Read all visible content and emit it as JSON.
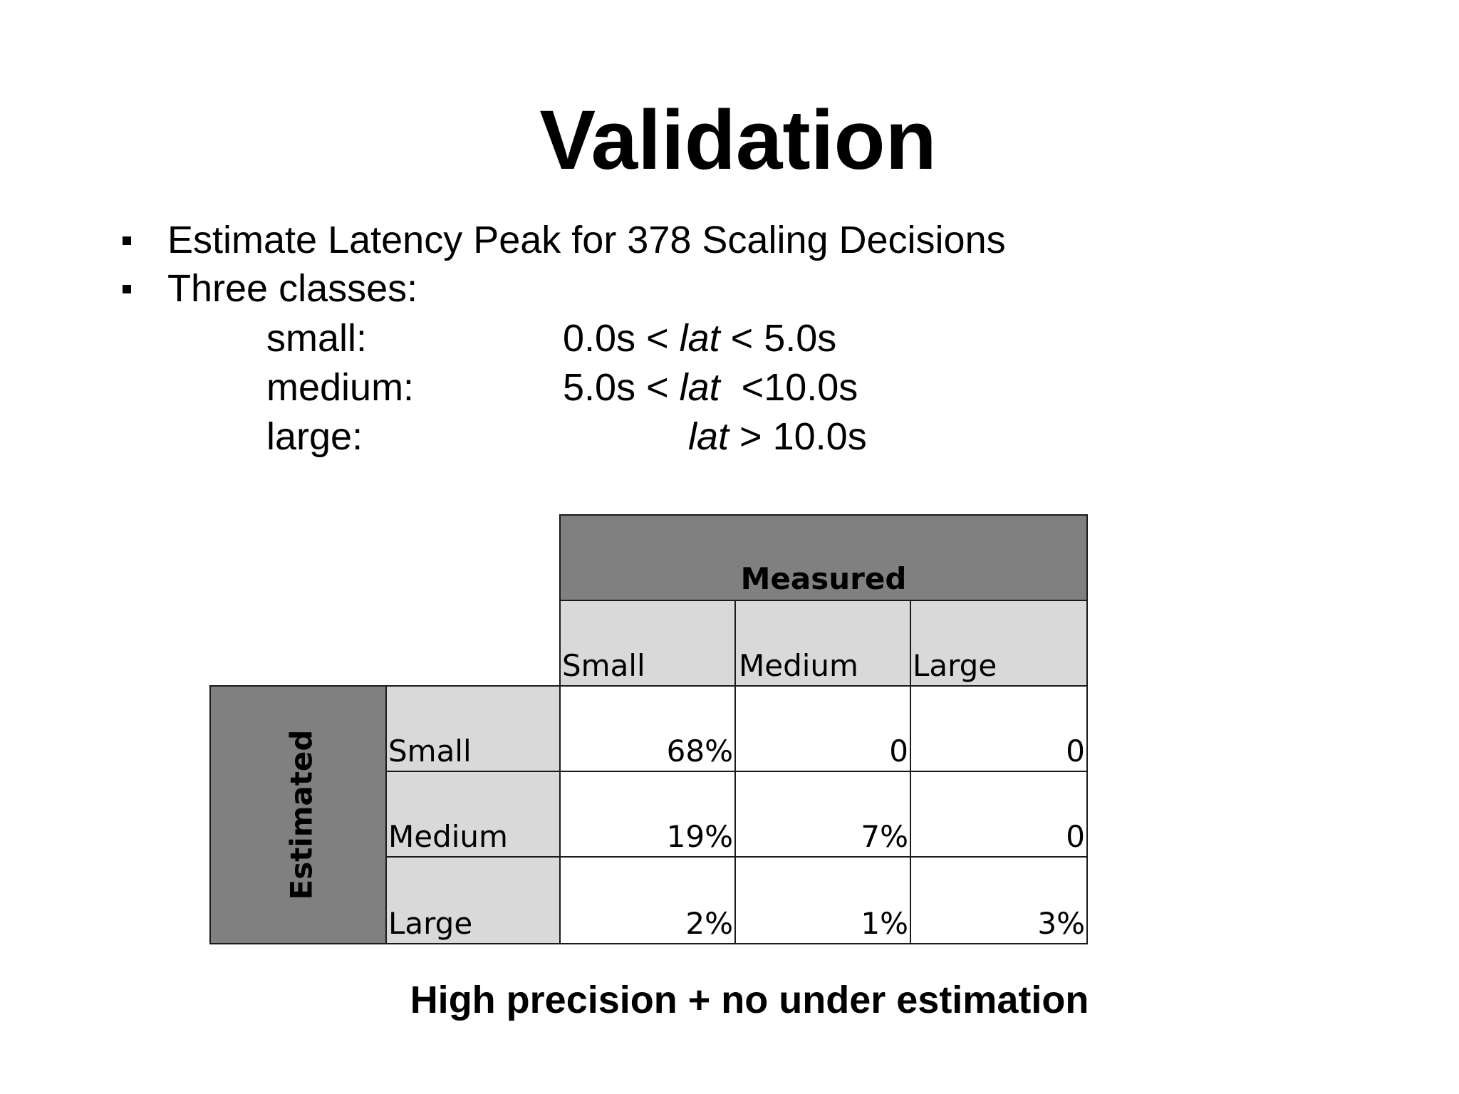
{
  "title": "Validation",
  "bullets": [
    "Estimate Latency Peak for 378 Scaling Decisions",
    "Three classes:"
  ],
  "classes": [
    {
      "name": "small:",
      "range_pre": "0.0s < ",
      "var": "lat",
      "range_post": " < 5.0s"
    },
    {
      "name": "medium:",
      "range_pre": "5.0s < ",
      "var": "lat",
      "range_post": "  <10.0s"
    },
    {
      "name": "large:",
      "range_pre": "",
      "var": "lat",
      "range_post": " > 10.0s"
    }
  ],
  "table": {
    "column_group_label": "Measured",
    "row_group_label": "Estimated",
    "columns": [
      "Small",
      "Medium",
      "Large"
    ],
    "rows": [
      {
        "label": "Small",
        "values": [
          "68%",
          "0",
          "0"
        ]
      },
      {
        "label": "Medium",
        "values": [
          "19%",
          "7%",
          "0"
        ]
      },
      {
        "label": "Large",
        "values": [
          "2%",
          "1%",
          "3%"
        ]
      }
    ]
  },
  "footer": "High precision + no under estimation"
}
